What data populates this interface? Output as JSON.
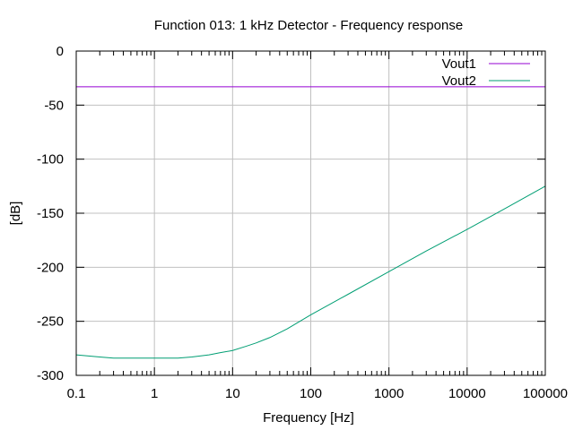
{
  "chart_data": {
    "type": "line",
    "title": "Function 013: 1 kHz Detector - Frequency response",
    "xlabel": "Frequency [Hz]",
    "ylabel": "[dB]",
    "xscale": "log",
    "xlim": [
      0.1,
      100000
    ],
    "ylim": [
      -300,
      0
    ],
    "xticks": [
      0.1,
      1,
      10,
      100,
      1000,
      10000,
      100000
    ],
    "xtick_labels": [
      "0.1",
      "1",
      "10",
      "100",
      "1000",
      "10000",
      "100000"
    ],
    "yticks": [
      0,
      -50,
      -100,
      -150,
      -200,
      -250,
      -300
    ],
    "ytick_labels": [
      "0",
      "-50",
      "-100",
      "-150",
      "-200",
      "-250",
      "-300"
    ],
    "grid": true,
    "legend": "top-right",
    "series": [
      {
        "name": "Vout1",
        "color": "#9400d3",
        "x": [
          0.1,
          100000
        ],
        "y": [
          -33,
          -33
        ]
      },
      {
        "name": "Vout2",
        "color": "#009e73",
        "x": [
          0.1,
          0.2,
          0.3,
          0.5,
          1,
          2,
          3,
          5,
          7,
          10,
          15,
          20,
          30,
          50,
          100,
          300,
          1000,
          3000,
          10000,
          30000,
          100000
        ],
        "y": [
          -281,
          -283,
          -284,
          -284,
          -284,
          -284,
          -283,
          -281,
          -279,
          -277,
          -273,
          -270,
          -265,
          -257,
          -244,
          -225,
          -204,
          -185,
          -165,
          -146,
          -125
        ]
      }
    ]
  }
}
